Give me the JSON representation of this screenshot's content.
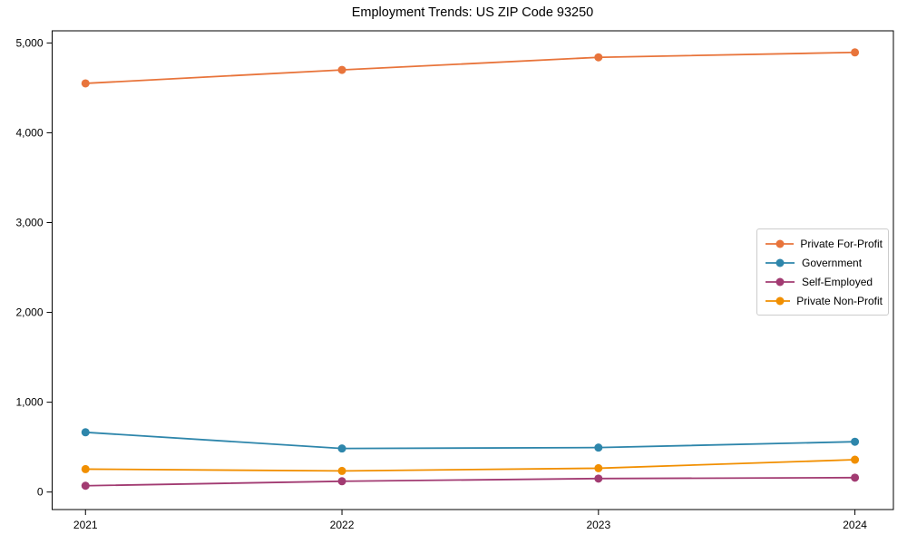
{
  "chart_data": {
    "type": "line",
    "title": "Employment Trends: US ZIP Code 93250",
    "xlabel": "",
    "ylabel": "",
    "x": [
      2021,
      2022,
      2023,
      2024
    ],
    "x_tick_labels": [
      "2021",
      "2022",
      "2023",
      "2024"
    ],
    "yticks": [
      0,
      1000,
      2000,
      3000,
      4000,
      5000
    ],
    "ytick_labels": [
      "0",
      "1,000",
      "2,000",
      "3,000",
      "4,000",
      "5,000"
    ],
    "xlim": [
      2020.87,
      2024.15
    ],
    "ylim": [
      -195,
      5135
    ],
    "grid": false,
    "legend_position": "center-right",
    "marker": "circle",
    "axis_color": "#000000",
    "series": [
      {
        "name": "Private For-Profit",
        "color": "#E8743B",
        "values": [
          4550,
          4700,
          4840,
          4895
        ]
      },
      {
        "name": "Government",
        "color": "#2E86AB",
        "values": [
          665,
          485,
          495,
          560
        ]
      },
      {
        "name": "Self-Employed",
        "color": "#A23B72",
        "values": [
          70,
          120,
          150,
          160
        ]
      },
      {
        "name": "Private Non-Profit",
        "color": "#F18F01",
        "values": [
          255,
          235,
          265,
          360
        ]
      }
    ]
  }
}
